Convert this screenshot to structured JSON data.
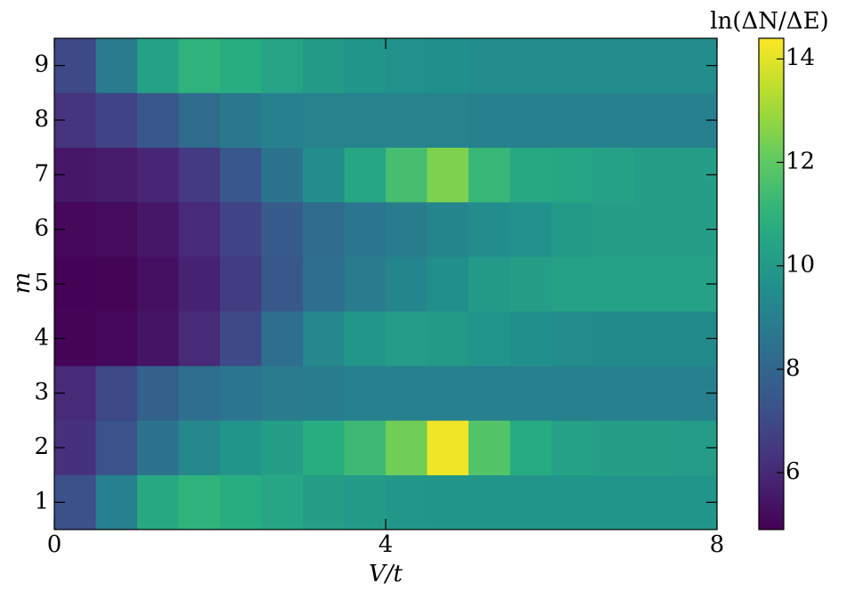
{
  "chart_data": {
    "type": "heatmap",
    "xlabel": "V/t",
    "ylabel": "m",
    "colorbar_label": "ln(ΔN/ΔE)",
    "colormap": "viridis",
    "x": [
      0.25,
      0.75,
      1.25,
      1.75,
      2.25,
      2.75,
      3.25,
      3.75,
      4.25,
      4.75,
      5.25,
      5.75,
      6.25,
      6.75,
      7.25,
      7.75
    ],
    "y": [
      1,
      2,
      3,
      4,
      5,
      6,
      7,
      8,
      9
    ],
    "z": [
      [
        7.2,
        9.0,
        10.6,
        11.0,
        10.8,
        10.5,
        10.2,
        10.0,
        9.9,
        9.8,
        9.8,
        9.8,
        9.8,
        9.8,
        9.8,
        9.8
      ],
      [
        6.2,
        7.3,
        8.5,
        9.3,
        9.8,
        10.2,
        10.8,
        11.3,
        12.3,
        14.2,
        11.8,
        10.7,
        10.3,
        10.2,
        10.2,
        10.1
      ],
      [
        6.0,
        7.0,
        7.8,
        8.3,
        8.6,
        8.8,
        8.9,
        9.0,
        9.0,
        9.0,
        9.0,
        9.0,
        9.0,
        9.0,
        9.0,
        9.0
      ],
      [
        5.0,
        5.1,
        5.4,
        6.0,
        7.0,
        8.3,
        9.3,
        9.9,
        10.1,
        10.0,
        9.8,
        9.6,
        9.5,
        9.4,
        9.4,
        9.4
      ],
      [
        4.95,
        5.0,
        5.3,
        5.8,
        6.6,
        7.5,
        8.3,
        8.8,
        9.2,
        9.6,
        10.0,
        10.2,
        10.3,
        10.3,
        10.3,
        10.3
      ],
      [
        5.1,
        5.2,
        5.5,
        6.0,
        6.8,
        7.6,
        8.2,
        8.6,
        8.9,
        9.2,
        9.5,
        9.7,
        10.0,
        10.2,
        10.2,
        10.2
      ],
      [
        5.5,
        5.6,
        5.9,
        6.5,
        7.5,
        8.5,
        9.5,
        10.5,
        11.5,
        12.5,
        11.2,
        10.6,
        10.5,
        10.3,
        10.2,
        10.2
      ],
      [
        6.3,
        6.8,
        7.5,
        8.2,
        8.7,
        9.0,
        9.1,
        9.1,
        9.1,
        9.1,
        9.0,
        9.0,
        9.0,
        9.0,
        9.0,
        9.0
      ],
      [
        7.0,
        8.8,
        10.3,
        11.0,
        10.8,
        10.4,
        10.0,
        9.8,
        9.7,
        9.6,
        9.5,
        9.5,
        9.5,
        9.5,
        9.5,
        9.5
      ]
    ],
    "xlim": [
      0,
      8
    ],
    "xticks": [
      0,
      4,
      8
    ],
    "ylim": [
      0.5,
      9.5
    ],
    "yticks": [
      1,
      2,
      3,
      4,
      5,
      6,
      7,
      8,
      9
    ],
    "clim": [
      4.9,
      14.4
    ],
    "cticks": [
      6,
      8,
      10,
      12,
      14
    ]
  }
}
